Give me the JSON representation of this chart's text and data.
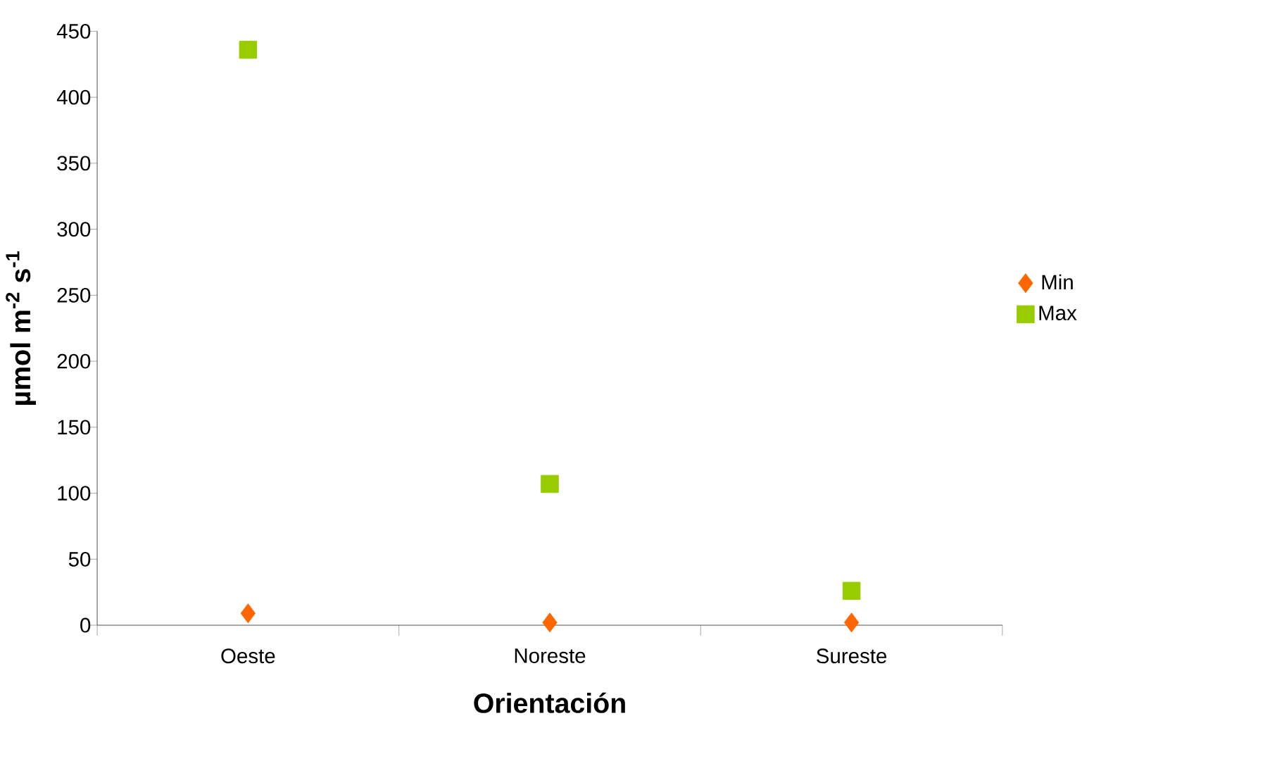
{
  "chart_data": {
    "type": "scatter",
    "xlabel": "Orientación",
    "ylabel": "µmol m$^{-2}$ s$^{-1}$",
    "categories": [
      "Oeste",
      "Noreste",
      "Sureste"
    ],
    "series": [
      {
        "name": "Min",
        "color": "#ff6600",
        "marker": "diamond",
        "values": [
          9,
          2,
          2
        ]
      },
      {
        "name": "Max",
        "color": "#99cc00",
        "marker": "square",
        "values": [
          436,
          107,
          26
        ]
      }
    ],
    "ylim": [
      0,
      450
    ],
    "yticks": [
      0,
      50,
      100,
      150,
      200,
      250,
      300,
      350,
      400,
      450
    ],
    "grid": false,
    "legend": "right"
  }
}
